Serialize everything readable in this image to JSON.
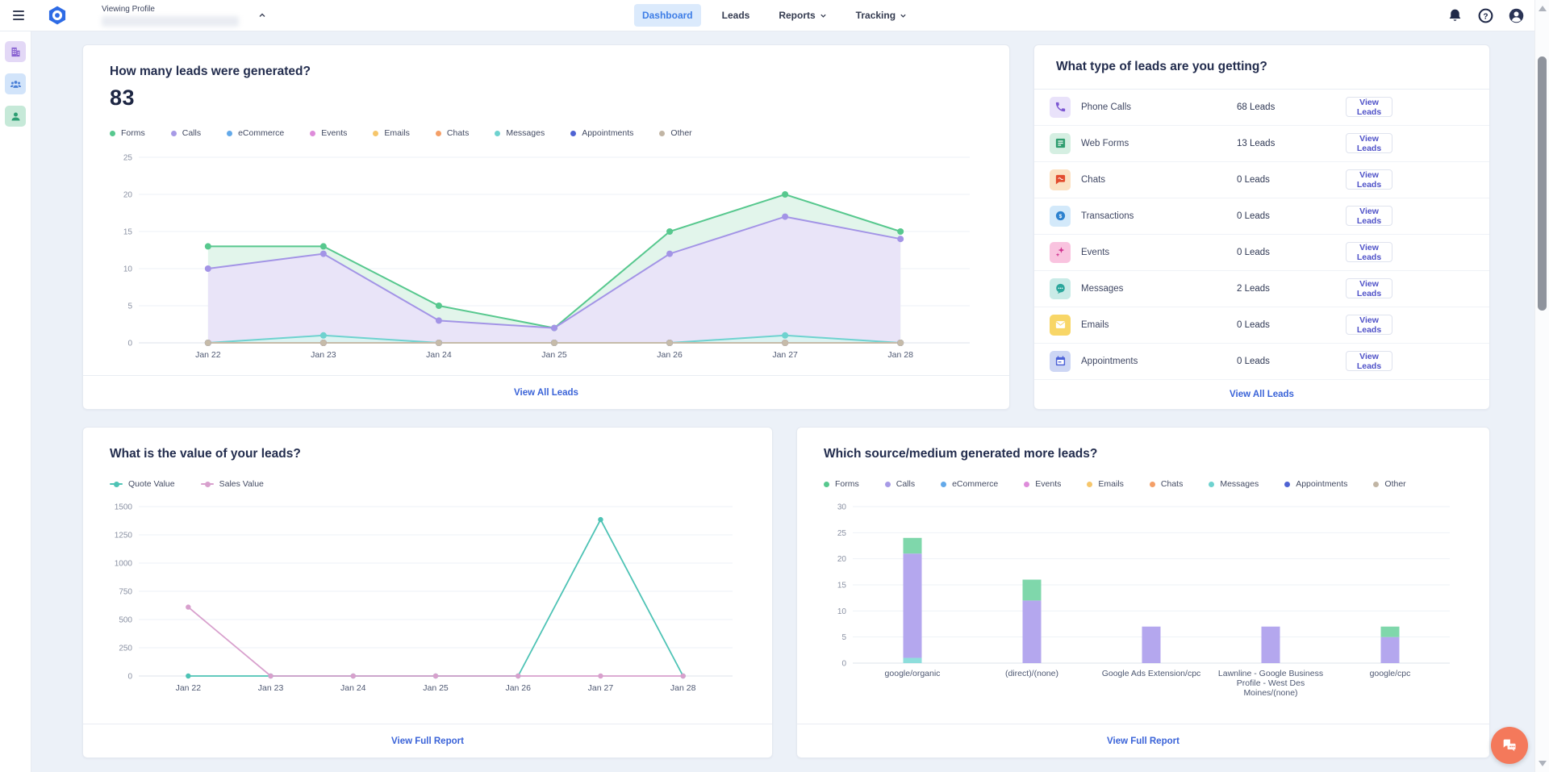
{
  "header": {
    "viewing_profile_label": "Viewing Profile",
    "tabs": [
      {
        "label": "Dashboard"
      },
      {
        "label": "Leads"
      },
      {
        "label": "Reports"
      },
      {
        "label": "Tracking"
      }
    ]
  },
  "cards": {
    "leads_generated": {
      "title": "How many leads were generated?",
      "total": "83",
      "footer_link": "View All Leads"
    },
    "lead_types": {
      "title": "What type of leads are you getting?",
      "rows": [
        {
          "label": "Phone Calls",
          "count": "68 Leads",
          "action": "View Leads",
          "icon": "phone",
          "icon_bg": "#e9e2fa",
          "icon_color": "#7d57d2"
        },
        {
          "label": "Web Forms",
          "count": "13 Leads",
          "action": "View Leads",
          "icon": "form",
          "icon_bg": "#d5efe2",
          "icon_color": "#2f9e6f"
        },
        {
          "label": "Chats",
          "count": "0 Leads",
          "action": "View Leads",
          "icon": "chat",
          "icon_bg": "#fbe2c3",
          "icon_color": "#e34d2e"
        },
        {
          "label": "Transactions",
          "count": "0 Leads",
          "action": "View Leads",
          "icon": "dollar",
          "icon_bg": "#d3e9fa",
          "icon_color": "#2d82cf"
        },
        {
          "label": "Events",
          "count": "0 Leads",
          "action": "View Leads",
          "icon": "event",
          "icon_bg": "#f9c3df",
          "icon_color": "#d23390"
        },
        {
          "label": "Messages",
          "count": "2 Leads",
          "action": "View Leads",
          "icon": "message",
          "icon_bg": "#c9ebe7",
          "icon_color": "#2ba79c"
        },
        {
          "label": "Emails",
          "count": "0 Leads",
          "action": "View Leads",
          "icon": "email",
          "icon_bg": "#f8d667",
          "icon_color": "#ffffff"
        },
        {
          "label": "Appointments",
          "count": "0 Leads",
          "action": "View Leads",
          "icon": "calendar",
          "icon_bg": "#cdd6f4",
          "icon_color": "#4c62d8"
        }
      ],
      "footer_link": "View All Leads"
    },
    "lead_value": {
      "title": "What is the value of your leads?",
      "footer_link": "View Full Report"
    },
    "source_medium": {
      "title": "Which source/medium generated more leads?",
      "footer_link": "View Full Report"
    }
  },
  "legend_types": [
    {
      "label": "Forms",
      "color": "#57c88e"
    },
    {
      "label": "Calls",
      "color": "#a79ae6"
    },
    {
      "label": "eCommerce",
      "color": "#63a9e9"
    },
    {
      "label": "Events",
      "color": "#de8cda"
    },
    {
      "label": "Emails",
      "color": "#f6c66b"
    },
    {
      "label": "Chats",
      "color": "#f49f67"
    },
    {
      "label": "Messages",
      "color": "#6ed2cf"
    },
    {
      "label": "Appointments",
      "color": "#4f63d3"
    },
    {
      "label": "Other",
      "color": "#c1b5a4"
    }
  ],
  "legend_value": [
    {
      "label": "Quote Value",
      "color": "#4ec3b5"
    },
    {
      "label": "Sales Value",
      "color": "#d8a0cd"
    }
  ],
  "chart_data": [
    {
      "id": "leads_generated",
      "type": "area",
      "title": "How many leads were generated?",
      "x": [
        "Jan 22",
        "Jan 23",
        "Jan 24",
        "Jan 25",
        "Jan 26",
        "Jan 27",
        "Jan 28"
      ],
      "ylim": [
        0,
        25
      ],
      "yticks": [
        0,
        5,
        10,
        15,
        20,
        25
      ],
      "grid": true,
      "legend_position": "top",
      "series": [
        {
          "name": "Forms",
          "color": "#57c88e",
          "fill": "#e2f5eb",
          "values": [
            13,
            13,
            5,
            2,
            15,
            20,
            15
          ]
        },
        {
          "name": "Calls",
          "color": "#a394e6",
          "fill": "#e9e4f8",
          "values": [
            10,
            12,
            3,
            2,
            12,
            17,
            14
          ]
        },
        {
          "name": "eCommerce",
          "color": "#63a9e9",
          "values": [
            0,
            0,
            0,
            0,
            0,
            0,
            0
          ]
        },
        {
          "name": "Events",
          "color": "#de8cda",
          "values": [
            0,
            0,
            0,
            0,
            0,
            0,
            0
          ]
        },
        {
          "name": "Emails",
          "color": "#f6c66b",
          "values": [
            0,
            0,
            0,
            0,
            0,
            0,
            0
          ]
        },
        {
          "name": "Chats",
          "color": "#f49f67",
          "values": [
            0,
            0,
            0,
            0,
            0,
            0,
            0
          ]
        },
        {
          "name": "Messages",
          "color": "#6ed2cf",
          "fill": "#ddf3f2",
          "values": [
            0,
            1,
            0,
            0,
            0,
            1,
            0
          ]
        },
        {
          "name": "Appointments",
          "color": "#4f63d3",
          "values": [
            0,
            0,
            0,
            0,
            0,
            0,
            0
          ]
        },
        {
          "name": "Other",
          "color": "#c6bba9",
          "values": [
            0,
            0,
            0,
            0,
            0,
            0,
            0
          ]
        }
      ]
    },
    {
      "id": "lead_value",
      "type": "line",
      "title": "What is the value of your leads?",
      "x": [
        "Jan 22",
        "Jan 23",
        "Jan 24",
        "Jan 25",
        "Jan 26",
        "Jan 27",
        "Jan 28"
      ],
      "ylim": [
        0,
        1500
      ],
      "yticks": [
        0,
        250,
        500,
        750,
        1000,
        1250,
        1500
      ],
      "grid": true,
      "legend_position": "top",
      "series": [
        {
          "name": "Quote Value",
          "color": "#4ec3b5",
          "values": [
            0,
            0,
            0,
            0,
            0,
            1385,
            0
          ]
        },
        {
          "name": "Sales Value",
          "color": "#d8a0cd",
          "values": [
            610,
            0,
            0,
            0,
            0,
            0,
            0
          ]
        }
      ]
    },
    {
      "id": "source_medium",
      "type": "stacked-bar",
      "title": "Which source/medium generated more leads?",
      "categories": [
        "google/organic",
        "(direct)/(none)",
        "Google Ads Extension/cpc",
        "Lawnline - Google Business Profile - West Des Moines/(none)",
        "google/cpc"
      ],
      "ylim": [
        0,
        30
      ],
      "yticks": [
        0,
        5,
        10,
        15,
        20,
        25,
        30
      ],
      "grid": true,
      "legend_position": "top",
      "series": [
        {
          "name": "Messages",
          "color": "#8ededc",
          "values": [
            1,
            0,
            0,
            0,
            0
          ]
        },
        {
          "name": "Calls",
          "color": "#b4a7ee",
          "values": [
            20,
            12,
            7,
            7,
            5
          ]
        },
        {
          "name": "Forms",
          "color": "#7fd7ab",
          "values": [
            3,
            4,
            0,
            0,
            2
          ]
        }
      ]
    }
  ]
}
